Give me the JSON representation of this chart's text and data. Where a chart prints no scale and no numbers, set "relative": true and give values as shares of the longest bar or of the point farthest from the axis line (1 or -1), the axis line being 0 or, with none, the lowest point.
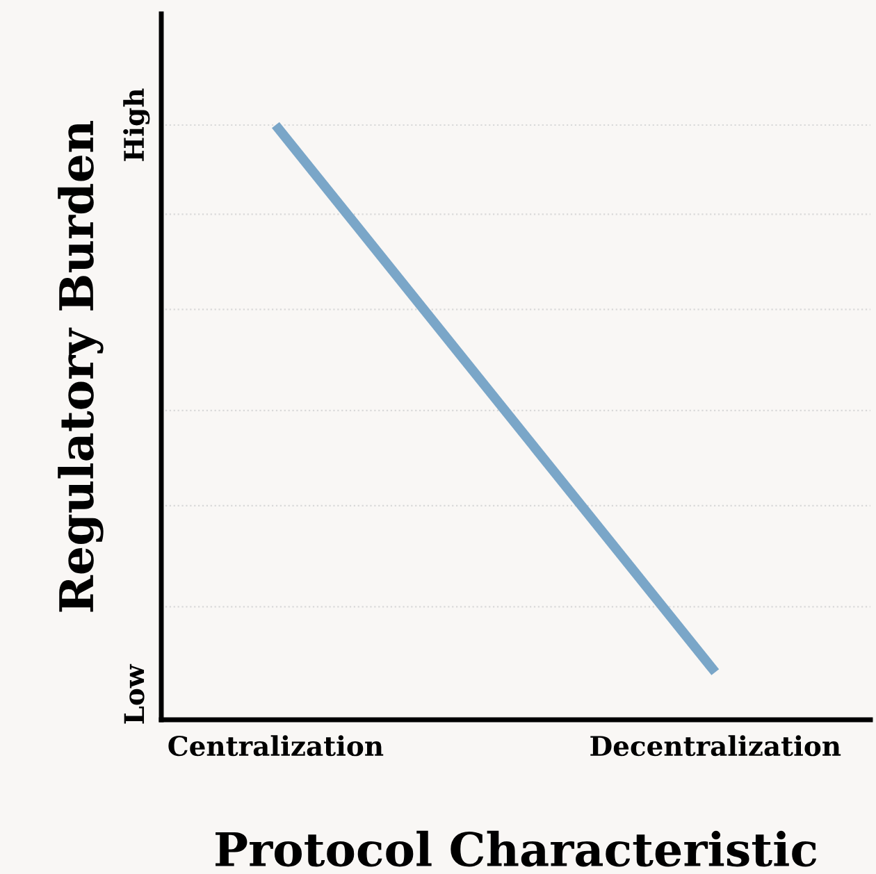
{
  "chart_data": {
    "type": "line",
    "xlabel": "Protocol Characteristic",
    "ylabel": "Regulatory Burden",
    "categories": [
      "Centralization",
      "Decentralization"
    ],
    "relative": true,
    "series": [
      {
        "color": "#7aa6c8",
        "values": [
          1,
          0.08
        ]
      }
    ],
    "annotations": [
      "High",
      "Low"
    ],
    "ref_lines": [
      {
        "axis": "y",
        "value": 0.19,
        "color": "#d9d9d9",
        "line_style": "dotted"
      },
      {
        "axis": "y",
        "value": 0.36,
        "color": "#d9d9d9",
        "line_style": "dotted"
      },
      {
        "axis": "y",
        "value": 0.52,
        "color": "#d9d9d9",
        "line_style": "dotted"
      },
      {
        "axis": "y",
        "value": 0.69,
        "color": "#d9d9d9",
        "line_style": "dotted"
      },
      {
        "axis": "y",
        "value": 0.85,
        "color": "#d9d9d9",
        "line_style": "dotted"
      },
      {
        "axis": "y",
        "value": 1,
        "color": "#d9d9d9",
        "line_style": "dotted"
      }
    ],
    "grid": false,
    "legend": false,
    "marker": "none",
    "line_style": "solid"
  }
}
